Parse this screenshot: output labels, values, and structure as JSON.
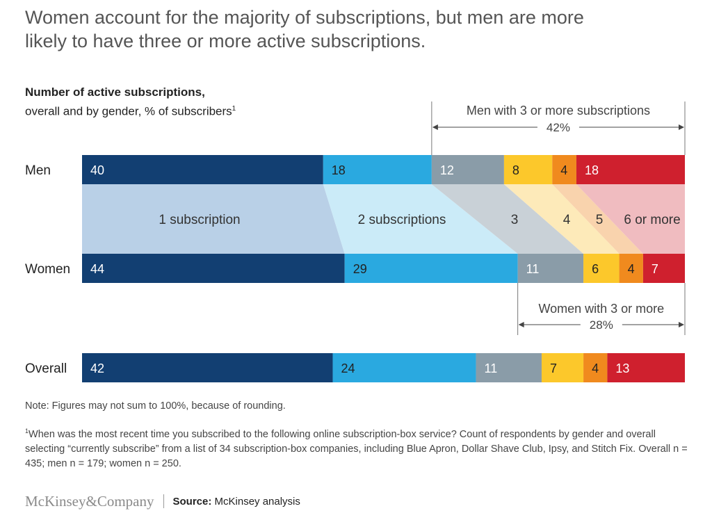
{
  "title_lines": [
    "Women account for the majority of subscriptions, but men are more",
    "likely to have three or more active subscriptions."
  ],
  "subtitle_bold": "Number of active subscriptions,",
  "subtitle_rest": "overall and by gender, % of subscribers",
  "subtitle_sup": "1",
  "chart_data": {
    "type": "bar",
    "orientation": "horizontal",
    "stacked": true,
    "categories": [
      "1 subscription",
      "2 subscriptions",
      "3",
      "4",
      "5",
      "6 or more"
    ],
    "colors": [
      "#123f72",
      "#2aa9e0",
      "#8a9ca8",
      "#fcc82b",
      "#f08a1e",
      "#cf202e"
    ],
    "band_colors": [
      "#b9d0e7",
      "#cbebf8",
      "#c9d1d7",
      "#fdeab9",
      "#f9d3ad",
      "#f0bcc0"
    ],
    "series": [
      {
        "name": "Men",
        "values": [
          40,
          18,
          12,
          8,
          4,
          18
        ]
      },
      {
        "name": "Women",
        "values": [
          44,
          29,
          11,
          6,
          4,
          7
        ]
      },
      {
        "name": "Overall",
        "values": [
          42,
          24,
          11,
          7,
          4,
          13
        ]
      }
    ],
    "annotations": [
      {
        "label": "Men with 3 or more subscriptions",
        "value": "42%",
        "series": "Men",
        "from_category": "3"
      },
      {
        "label": "Women with 3 or more",
        "value": "28%",
        "series": "Women",
        "from_category": "3"
      }
    ]
  },
  "note": "Note: Figures may not sum to 100%, because of rounding.",
  "footnote_marker": "1",
  "footnote": "When was the most recent time you subscribed to the following online subscription-box service? Count of respondents by gender and overall selecting “currently subscribe” from a list of 34 subscription-box companies, including Blue Apron, Dollar Shave Club, Ipsy, and Stitch Fix. Overall n = 435; men n = 179; women n = 250.",
  "brand": "McKinsey&Company",
  "source_label": "Source:",
  "source_text": "McKinsey analysis"
}
